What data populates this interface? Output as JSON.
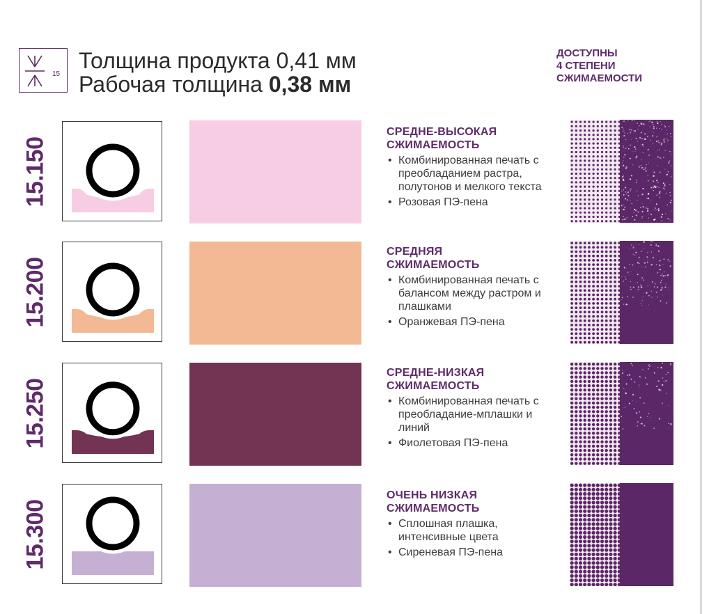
{
  "header": {
    "icon_label": "15",
    "line1": "Толщина продукта 0,41 мм",
    "line2_prefix": "Рабочая толщина ",
    "line2_bold": "0,38 мм",
    "note_lines": [
      "ДОСТУПНЫ",
      "4 СТЕПЕНИ",
      "СЖИМАЕМОСТИ"
    ]
  },
  "colors": {
    "accent": "#5e2a69",
    "texture_purple": "#5c2766"
  },
  "rows": [
    {
      "code": "15.150",
      "swatch_color": "#f7cde3",
      "foam_color": "#f7cde3",
      "compression_depth": 0.35,
      "title1": "СРЕДНЕ-ВЫСОКАЯ",
      "title2": "СЖИМАЕМОСТЬ",
      "bullets": [
        "Комбинированная печать с преобладанием растра, полутонов и мелкого текста",
        "Розовая ПЭ-пена"
      ]
    },
    {
      "code": "15.200",
      "swatch_color": "#f2b994",
      "foam_color": "#f2b994",
      "compression_depth": 0.3,
      "title1": "СРЕДНЯЯ",
      "title2": "СЖИМАЕМОСТЬ",
      "bullets": [
        "Комбинированная печать с балансом между растром и плашками",
        "Оранжевая ПЭ-пена"
      ]
    },
    {
      "code": "15.250",
      "swatch_color": "#733353",
      "foam_color": "#733353",
      "compression_depth": 0.22,
      "title1": "СРЕДНЕ-НИЗКАЯ",
      "title2": "СЖИМАЕМОСТЬ",
      "bullets": [
        "Комбинированная печать с преобладание-мплашки и линий",
        "Фиолетовая ПЭ-пена"
      ]
    },
    {
      "code": "15.300",
      "swatch_color": "#c5b0d3",
      "foam_color": "#c5b0d3",
      "compression_depth": 0.0,
      "title1": "ОЧЕНЬ НИЗКАЯ",
      "title2": "СЖИМАЕМОСТЬ",
      "bullets": [
        "Сплошная плашка, интенсивные цвета",
        "Сиреневая ПЭ-пена"
      ]
    }
  ]
}
